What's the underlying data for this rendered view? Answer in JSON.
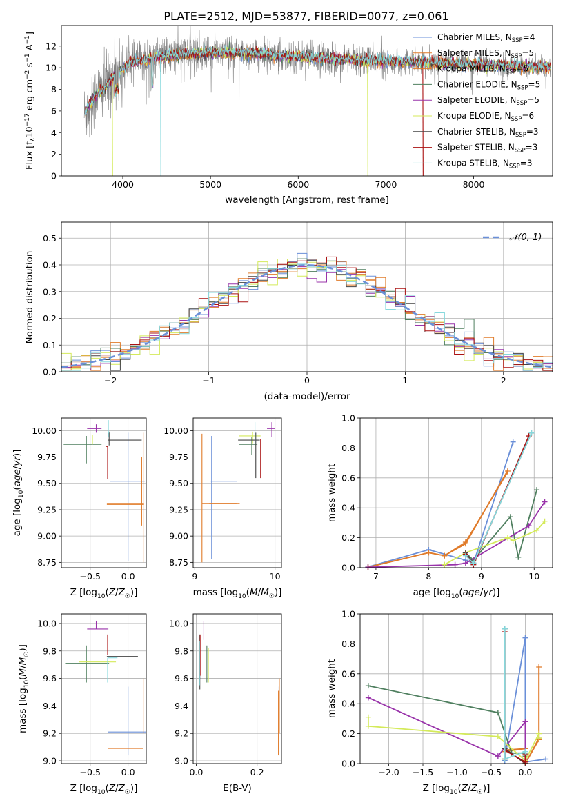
{
  "figure_title": "PLATE=2512, MJD=53877, FIBERID=0077, z=0.061",
  "colors": {
    "Chabrier MILES": "#6a8fd8",
    "Salpeter MILES": "#e07b2a",
    "Kroupa MILES": "#e07b2a",
    "Chabrier ELODIE": "#4f7f5f",
    "Salpeter ELODIE": "#9933aa",
    "Kroupa ELODIE": "#d4ea5a",
    "Chabrier STELIB": "#444444",
    "Salpeter STELIB": "#aa1111",
    "Kroupa STELIB": "#86d8dc",
    "data": "#808080"
  },
  "chart_data": [
    {
      "id": "spectrum",
      "type": "line",
      "title": "PLATE=2512, MJD=53877, FIBERID=0077, z=0.061",
      "xlabel": "wavelength [Angstrom, rest frame]",
      "ylabel": "Flux [f_λ 10^-17 erg cm^-2 s^-1 A^-1]",
      "xlim": [
        3300,
        8900
      ],
      "ylim": [
        0,
        13.9
      ],
      "xticks": [
        4000,
        5000,
        6000,
        7000,
        8000
      ],
      "yticks": [
        0,
        2,
        4,
        6,
        8,
        10,
        12
      ],
      "legend_position": "right",
      "legend": [
        {
          "base": "Chabrier MILES, N",
          "sub": "SSP",
          "tail": "=4"
        },
        {
          "base": "Salpeter MILES, N",
          "sub": "SSP",
          "tail": "=5"
        },
        {
          "base": "Kroupa MILES, N",
          "sub": "SSP",
          "tail": "=5"
        },
        {
          "base": "Chabrier ELODIE, N",
          "sub": "SSP",
          "tail": "=5"
        },
        {
          "base": "Salpeter ELODIE, N",
          "sub": "SSP",
          "tail": "=5"
        },
        {
          "base": "Kroupa ELODIE, N",
          "sub": "SSP",
          "tail": "=6"
        },
        {
          "base": "Chabrier STELIB, N",
          "sub": "SSP",
          "tail": "=3"
        },
        {
          "base": "Salpeter STELIB, N",
          "sub": "SSP",
          "tail": "=3"
        },
        {
          "base": "Kroupa STELIB, N",
          "sub": "SSP",
          "tail": "=3"
        }
      ],
      "data_wavelength_range": [
        3560,
        8880
      ],
      "model_continuum": {
        "x": [
          3570,
          3620,
          3700,
          3800,
          3900,
          4000,
          4100,
          4300,
          4500,
          4800,
          5000,
          5500,
          6000,
          6500,
          7000,
          7400,
          8000,
          8880
        ],
        "y": [
          5.8,
          6.6,
          7.5,
          8.2,
          9.2,
          9.9,
          10.5,
          10.8,
          11.1,
          11.3,
          11.4,
          11.3,
          11.0,
          10.8,
          10.6,
          10.5,
          10.3,
          10.0
        ]
      }
    },
    {
      "id": "residuals",
      "type": "step-histogram",
      "xlabel": "(data-model)/error",
      "ylabel": "Normed distribution",
      "xlim": [
        -2.5,
        2.5
      ],
      "ylim": [
        0,
        0.56
      ],
      "xticks": [
        -2,
        -1,
        0,
        1,
        2
      ],
      "yticks": [
        0.0,
        0.1,
        0.2,
        0.3,
        0.4,
        0.5
      ],
      "legend_position": "top-right",
      "reference_curve": {
        "label": "N(0,1)",
        "mean": 0,
        "sigma": 1
      }
    },
    {
      "id": "age_vs_Z",
      "type": "errorbar",
      "xlabel": "Z [log10(Z/Z☉)]",
      "ylabel": "age [log10(age/yr)]",
      "xlim": [
        -0.88,
        0.24
      ],
      "ylim": [
        8.7,
        10.12
      ],
      "xticks": [
        -0.5,
        0.0
      ],
      "yticks": [
        8.75,
        9.0,
        9.25,
        9.5,
        9.75,
        10.0
      ],
      "points": [
        {
          "model": "Chabrier MILES",
          "x": 0.0,
          "xerr": [
            0.24,
            0.22
          ],
          "y": 9.52,
          "yerr": [
            0.76,
            0.46
          ]
        },
        {
          "model": "Salpeter MILES",
          "x": 0.2,
          "xerr": [
            0.48,
            0.01
          ],
          "y": 9.31,
          "yerr": [
            0.56,
            0.67
          ]
        },
        {
          "model": "Kroupa MILES",
          "x": 0.18,
          "xerr": [
            0.46,
            0.03
          ],
          "y": 9.3,
          "yerr": [
            0.2,
            0.45
          ]
        },
        {
          "model": "Chabrier ELODIE",
          "x": -0.55,
          "xerr": [
            0.3,
            0.2
          ],
          "y": 9.87,
          "yerr": [
            0.18,
            0.08
          ]
        },
        {
          "model": "Salpeter ELODIE",
          "x": -0.42,
          "xerr": [
            0.12,
            0.07
          ],
          "y": 10.02,
          "yerr": [
            0.04,
            0.04
          ]
        },
        {
          "model": "Kroupa ELODIE",
          "x": -0.47,
          "xerr": [
            0.16,
            0.18
          ],
          "y": 9.94,
          "yerr": [
            0.07,
            0.02
          ]
        },
        {
          "model": "Chabrier STELIB",
          "x": -0.25,
          "xerr": [
            0.02,
            0.43
          ],
          "y": 9.91,
          "yerr": [
            0.05,
            0.08
          ]
        },
        {
          "model": "Salpeter STELIB",
          "x": -0.27,
          "xerr": [
            0.02,
            0.0
          ],
          "y": 9.85,
          "yerr": [
            0.31,
            0.0
          ]
        },
        {
          "model": "Kroupa STELIB",
          "x": -0.26,
          "xerr": [
            0.01,
            0.01
          ],
          "y": 9.98,
          "yerr": [
            0.04,
            0.12
          ]
        }
      ]
    },
    {
      "id": "age_vs_mass",
      "type": "errorbar",
      "xlabel": "mass [log10(M/M☉)]",
      "ylabel": "",
      "xlim": [
        8.98,
        10.08
      ],
      "ylim": [
        8.7,
        10.12
      ],
      "xticks": [
        9,
        10
      ],
      "yticks": [
        8.75,
        9.0,
        9.25,
        9.5,
        9.75,
        10.0
      ],
      "points": [
        {
          "model": "Chabrier MILES",
          "x": 9.21,
          "xerr": [
            0.01,
            0.32
          ],
          "y": 9.52,
          "yerr": [
            0.74,
            0.43
          ]
        },
        {
          "model": "Salpeter MILES",
          "x": 9.2,
          "xerr": [
            0.02,
            0.36
          ],
          "y": 9.31,
          "yerr": [
            0.0,
            0.0
          ]
        },
        {
          "model": "Kroupa MILES",
          "x": 9.09,
          "xerr": [
            0.0,
            0.43
          ],
          "y": 9.31,
          "yerr": [
            0.56,
            0.66
          ]
        },
        {
          "model": "Chabrier ELODIE",
          "x": 9.71,
          "xerr": [
            0.16,
            0.07
          ],
          "y": 9.87,
          "yerr": [
            0.1,
            0.07
          ]
        },
        {
          "model": "Salpeter ELODIE",
          "x": 9.96,
          "xerr": [
            0.06,
            0.04
          ],
          "y": 10.02,
          "yerr": [
            0.08,
            0.06
          ]
        },
        {
          "model": "Kroupa ELODIE",
          "x": 9.72,
          "xerr": [
            0.17,
            0.1
          ],
          "y": 9.95,
          "yerr": [
            0.07,
            0.04
          ]
        },
        {
          "model": "Chabrier STELIB",
          "x": 9.76,
          "xerr": [
            0.22,
            0.05
          ],
          "y": 9.91,
          "yerr": [
            0.36,
            0.07
          ]
        },
        {
          "model": "Salpeter STELIB",
          "x": 9.82,
          "xerr": [
            0.0,
            0.0
          ],
          "y": 9.85,
          "yerr": [
            0.3,
            0.07
          ]
        },
        {
          "model": "Kroupa STELIB",
          "x": 9.75,
          "xerr": [
            0.0,
            0.0
          ],
          "y": 9.98,
          "yerr": [
            0.1,
            0.1
          ]
        }
      ]
    },
    {
      "id": "weight_vs_age",
      "type": "line",
      "xlabel": "age [log10(age/yr)]",
      "ylabel": "mass weight",
      "xlim": [
        6.7,
        10.35
      ],
      "ylim": [
        0,
        1.0
      ],
      "xticks": [
        7,
        8,
        9,
        10
      ],
      "yticks": [
        0.0,
        0.2,
        0.4,
        0.6,
        0.8,
        1.0
      ],
      "series": [
        {
          "model": "Chabrier MILES",
          "x": [
            6.85,
            8.0,
            8.7,
            8.85,
            9.6
          ],
          "y": [
            0.005,
            0.12,
            0.05,
            0.03,
            0.84
          ]
        },
        {
          "model": "Salpeter MILES",
          "x": [
            6.85,
            8.0,
            8.3,
            8.7,
            9.5
          ],
          "y": [
            0.003,
            0.1,
            0.08,
            0.16,
            0.65
          ]
        },
        {
          "model": "Kroupa MILES",
          "x": [
            6.85,
            8.0,
            8.3,
            8.7,
            9.5
          ],
          "y": [
            0.003,
            0.1,
            0.08,
            0.17,
            0.64
          ]
        },
        {
          "model": "Chabrier ELODIE",
          "x": [
            8.7,
            8.85,
            9.55,
            9.7,
            10.05
          ],
          "y": [
            0.1,
            0.05,
            0.34,
            0.07,
            0.52
          ]
        },
        {
          "model": "Salpeter ELODIE",
          "x": [
            6.85,
            8.5,
            8.7,
            9.9,
            10.2
          ],
          "y": [
            0.003,
            0.02,
            0.03,
            0.28,
            0.44
          ]
        },
        {
          "model": "Kroupa ELODIE",
          "x": [
            8.3,
            8.7,
            9.5,
            9.6,
            10.05,
            10.2
          ],
          "y": [
            0.02,
            0.1,
            0.2,
            0.18,
            0.25,
            0.31
          ]
        },
        {
          "model": "Chabrier STELIB",
          "x": [
            8.7,
            8.85,
            9.95
          ],
          "y": [
            0.1,
            0.03,
            0.9
          ]
        },
        {
          "model": "Salpeter STELIB",
          "x": [
            8.7,
            8.85,
            9.9
          ],
          "y": [
            0.09,
            0.02,
            0.88
          ]
        },
        {
          "model": "Kroupa STELIB",
          "x": [
            8.7,
            8.85,
            9.95
          ],
          "y": [
            0.08,
            0.03,
            0.9
          ]
        }
      ]
    },
    {
      "id": "mass_vs_Z",
      "type": "errorbar",
      "xlabel": "Z [log10(Z/Z☉)]",
      "ylabel": "mass [log10(M/M☉)]",
      "xlim": [
        -0.88,
        0.24
      ],
      "ylim": [
        8.98,
        10.07
      ],
      "xticks": [
        -0.5,
        0.0
      ],
      "yticks": [
        9.0,
        9.2,
        9.4,
        9.6,
        9.8,
        10.0
      ],
      "points": [
        {
          "model": "Chabrier MILES",
          "x": 0.0,
          "xerr": [
            0.27,
            0.24
          ],
          "y": 9.21,
          "yerr": [
            0.17,
            0.33
          ]
        },
        {
          "model": "Salpeter MILES",
          "x": 0.2,
          "xerr": [
            0.0,
            0.0
          ],
          "y": 9.2,
          "yerr": [
            0.0,
            0.4
          ]
        },
        {
          "model": "Kroupa MILES",
          "x": 0.0,
          "xerr": [
            0.27,
            0.2
          ],
          "y": 9.09,
          "yerr": [
            0.0,
            0.0
          ]
        },
        {
          "model": "Chabrier ELODIE",
          "x": -0.55,
          "xerr": [
            0.28,
            0.3
          ],
          "y": 9.71,
          "yerr": [
            0.14,
            0.13
          ]
        },
        {
          "model": "Salpeter ELODIE",
          "x": -0.42,
          "xerr": [
            0.12,
            0.16
          ],
          "y": 9.96,
          "yerr": [
            0.0,
            0.06
          ]
        },
        {
          "model": "Kroupa ELODIE",
          "x": -0.42,
          "xerr": [
            0.23,
            0.26
          ],
          "y": 9.72,
          "yerr": [
            0.0,
            0.0
          ]
        },
        {
          "model": "Chabrier STELIB",
          "x": 0.0,
          "xerr": [
            0.28,
            0.13
          ],
          "y": 9.76,
          "yerr": [
            0.0,
            0.0
          ]
        },
        {
          "model": "Salpeter STELIB",
          "x": -0.27,
          "xerr": [
            0.0,
            0.0
          ],
          "y": 9.82,
          "yerr": [
            0.05,
            0.1
          ]
        },
        {
          "model": "Kroupa STELIB",
          "x": -0.27,
          "xerr": [
            0.0,
            0.13
          ],
          "y": 9.75,
          "yerr": [
            0.18,
            0.0
          ]
        }
      ]
    },
    {
      "id": "mass_vs_ebv",
      "type": "errorbar",
      "xlabel": "E(B-V)",
      "ylabel": "",
      "xlim": [
        -0.01,
        0.28
      ],
      "ylim": [
        8.98,
        10.07
      ],
      "xticks": [
        0.0,
        0.2
      ],
      "yticks": [
        9.0,
        9.2,
        9.4,
        9.6,
        9.8,
        10.0
      ],
      "points": [
        {
          "model": "Chabrier MILES",
          "x": 0.272,
          "xerr": [
            0,
            0
          ],
          "y": 9.21,
          "yerr": [
            0.17,
            0.33
          ]
        },
        {
          "model": "Salpeter MILES",
          "x": 0.273,
          "xerr": [
            0,
            0
          ],
          "y": 9.2,
          "yerr": [
            0.0,
            0.4
          ]
        },
        {
          "model": "Kroupa MILES",
          "x": 0.27,
          "xerr": [
            0,
            0
          ],
          "y": 9.09,
          "yerr": [
            0.05,
            0.42
          ]
        },
        {
          "model": "Chabrier ELODIE",
          "x": 0.035,
          "xerr": [
            0,
            0
          ],
          "y": 9.71,
          "yerr": [
            0.14,
            0.13
          ]
        },
        {
          "model": "Salpeter ELODIE",
          "x": 0.025,
          "xerr": [
            0,
            0
          ],
          "y": 9.96,
          "yerr": [
            0.08,
            0.06
          ]
        },
        {
          "model": "Kroupa ELODIE",
          "x": 0.04,
          "xerr": [
            0,
            0
          ],
          "y": 9.72,
          "yerr": [
            0.15,
            0.1
          ]
        },
        {
          "model": "Chabrier STELIB",
          "x": 0.012,
          "xerr": [
            0,
            0
          ],
          "y": 9.76,
          "yerr": [
            0.24,
            0.16
          ]
        },
        {
          "model": "Salpeter STELIB",
          "x": 0.013,
          "xerr": [
            0,
            0
          ],
          "y": 9.82,
          "yerr": [
            0.2,
            0.1
          ]
        },
        {
          "model": "Kroupa STELIB",
          "x": 0.011,
          "xerr": [
            0,
            0
          ],
          "y": 9.75,
          "yerr": [
            0.2,
            0.12
          ]
        }
      ]
    },
    {
      "id": "weight_vs_Z",
      "type": "line",
      "xlabel": "Z [log10(Z/Z☉)]",
      "ylabel": "mass weight",
      "xlim": [
        -2.42,
        0.4
      ],
      "ylim": [
        0,
        1.0
      ],
      "xticks": [
        -2.0,
        -1.5,
        -1.0,
        -0.5,
        0.0
      ],
      "yticks": [
        0.0,
        0.2,
        0.4,
        0.6,
        0.8,
        1.0
      ],
      "series": [
        {
          "model": "Chabrier MILES",
          "x": [
            -0.3,
            -0.3,
            0.0,
            0.0,
            0.3
          ],
          "y": [
            0.02,
            0.03,
            0.84,
            0.01,
            0.03
          ]
        },
        {
          "model": "Salpeter MILES",
          "x": [
            -0.3,
            -0.3,
            0.0,
            0.0,
            0.2,
            0.2
          ],
          "y": [
            0.03,
            0.08,
            0.1,
            0.0,
            0.16,
            0.65
          ]
        },
        {
          "model": "Kroupa MILES",
          "x": [
            -0.3,
            -0.3,
            0.0,
            0.0,
            0.2,
            0.2
          ],
          "y": [
            0.03,
            0.09,
            0.1,
            0.0,
            0.17,
            0.64
          ]
        },
        {
          "model": "Chabrier ELODIE",
          "x": [
            -2.3,
            -0.4,
            -0.2,
            0.0,
            0.0
          ],
          "y": [
            0.52,
            0.34,
            0.07,
            0.07,
            0.05
          ]
        },
        {
          "model": "Salpeter ELODIE",
          "x": [
            -2.3,
            -0.4,
            0.0,
            0.0
          ],
          "y": [
            0.44,
            0.05,
            0.28,
            0.03
          ]
        },
        {
          "model": "Kroupa ELODIE",
          "x": [
            -2.3,
            -2.3,
            -0.4,
            0.0,
            0.2,
            0.2
          ],
          "y": [
            0.31,
            0.25,
            0.18,
            0.02,
            0.2,
            0.17
          ]
        },
        {
          "model": "Chabrier STELIB",
          "x": [
            -0.3,
            -0.3,
            0.0,
            0.0
          ],
          "y": [
            0.9,
            0.1,
            0.0,
            0.07
          ]
        },
        {
          "model": "Salpeter STELIB",
          "x": [
            -0.3,
            -0.3,
            0.0,
            0.0
          ],
          "y": [
            0.88,
            0.09,
            0.01,
            0.06
          ]
        },
        {
          "model": "Kroupa STELIB",
          "x": [
            -0.3,
            -0.3,
            0.0
          ],
          "y": [
            0.9,
            0.03,
            0.08
          ]
        }
      ]
    }
  ]
}
